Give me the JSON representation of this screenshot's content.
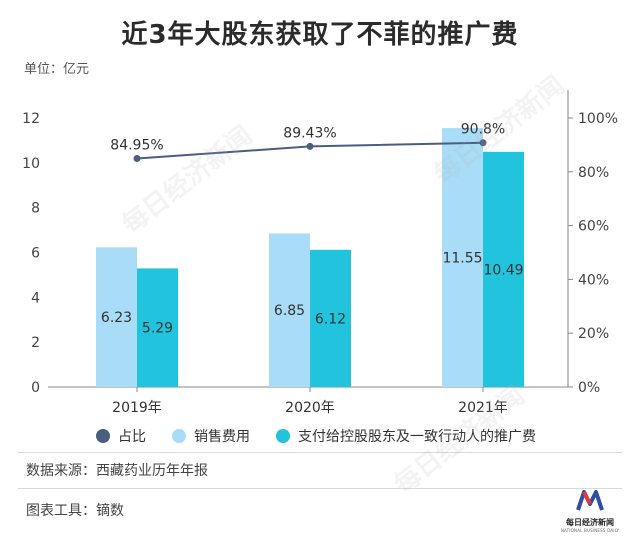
{
  "title": "近3年大股东获取了不菲的推广费",
  "unit_label": "单位：亿元",
  "chart_data": {
    "type": "bar",
    "categories": [
      "2019年",
      "2020年",
      "2021年"
    ],
    "series": [
      {
        "name": "销售费用",
        "type": "bar",
        "axis": "left",
        "values": [
          6.23,
          6.85,
          11.55
        ],
        "color": "#a8dcf7"
      },
      {
        "name": "支付给控股股东及一致行动人的推广费",
        "type": "bar",
        "axis": "left",
        "values": [
          5.29,
          6.12,
          10.49
        ],
        "color": "#21c4dc"
      },
      {
        "name": "占比",
        "type": "line",
        "axis": "right",
        "values": [
          84.95,
          89.43,
          90.8
        ],
        "labels": [
          "84.95%",
          "89.43%",
          "90.8%"
        ],
        "color": "#4a5f80"
      }
    ],
    "left_axis": {
      "min": 0,
      "max": 12,
      "ticks": [
        0,
        2,
        4,
        6,
        8,
        10,
        12
      ]
    },
    "right_axis": {
      "min": 0,
      "max": 100,
      "ticks": [
        0,
        20,
        40,
        60,
        80,
        100
      ],
      "tick_labels": [
        "0%",
        "20%",
        "40%",
        "60%",
        "80%",
        "100%"
      ]
    },
    "legend": [
      "占比",
      "销售费用",
      "支付给控股股东及一致行动人的推广费"
    ]
  },
  "source": "数据来源：西藏药业历年年报",
  "tool": "图表工具：镝数",
  "logo": {
    "text": "每日经济新闻",
    "subtitle": "NATIONAL BUSINESS DAILY"
  },
  "watermark": "每日经济新闻"
}
